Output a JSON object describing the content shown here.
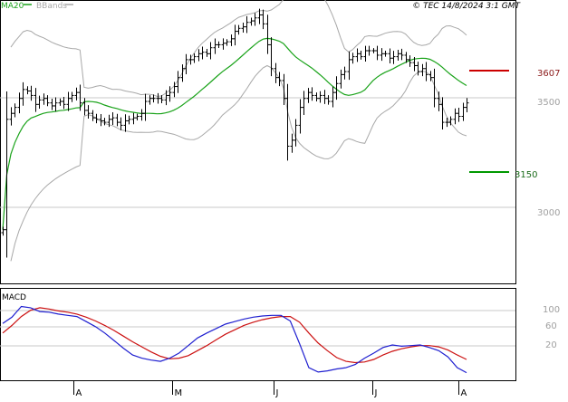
{
  "header": {
    "legend_ma": "MA20",
    "legend_bb": "BBands",
    "copyright": "© TEC 14/8/2024 3:1 GMT"
  },
  "colors": {
    "ma": "#1aa31a",
    "bb": "#a8a8a8",
    "price": "#000000",
    "macd": "#1f1fd0",
    "signal": "#cc1111",
    "target_high": "#cc0000",
    "target_low": "#009900",
    "grid": "#c8c8c8"
  },
  "chart_data": [
    {
      "type": "ohlc",
      "title": "",
      "series_labels": [
        "MA20",
        "BBands"
      ],
      "x_tick_labels": [
        "A",
        "M",
        "J",
        "J",
        "A"
      ],
      "y_tick_labels": [
        "3000",
        "3500"
      ],
      "ylim": [
        2850,
        3800
      ],
      "grid": true,
      "legend_position": "top-left",
      "levels": [
        {
          "name": "resistance",
          "label": "3607",
          "value": 3607,
          "color": "#cc0000"
        },
        {
          "name": "support",
          "label": "3150",
          "value": 3150,
          "color": "#009900"
        }
      ],
      "close": [
        3030,
        3400,
        3420,
        3440,
        3470,
        3500,
        3495,
        3480,
        3450,
        3465,
        3470,
        3455,
        3445,
        3455,
        3460,
        3450,
        3470,
        3480,
        3490,
        3455,
        3430,
        3420,
        3405,
        3400,
        3395,
        3390,
        3400,
        3405,
        3390,
        3380,
        3395,
        3400,
        3405,
        3410,
        3420,
        3460,
        3470,
        3470,
        3470,
        3465,
        3480,
        3490,
        3510,
        3540,
        3570,
        3600,
        3600,
        3610,
        3620,
        3625,
        3620,
        3640,
        3650,
        3650,
        3655,
        3660,
        3670,
        3695,
        3705,
        3710,
        3725,
        3730,
        3740,
        3750,
        3720,
        3650,
        3570,
        3540,
        3530,
        3470,
        3310,
        3330,
        3380,
        3440,
        3470,
        3490,
        3480,
        3470,
        3480,
        3470,
        3460,
        3490,
        3520,
        3550,
        3560,
        3600,
        3610,
        3620,
        3610,
        3630,
        3630,
        3630,
        3615,
        3620,
        3620,
        3605,
        3610,
        3620,
        3615,
        3600,
        3590,
        3580,
        3560,
        3570,
        3550,
        3540,
        3470,
        3450,
        3390,
        3390,
        3400,
        3420,
        3410,
        3440,
        3455
      ]
    },
    {
      "type": "line",
      "title": "",
      "series_labels": [
        "MACD"
      ],
      "y_tick_labels": [
        "100",
        "60",
        "20"
      ],
      "ylim": [
        -5,
        140
      ],
      "grid": true,
      "legend_position": "top-left",
      "macd": [
        85,
        95,
        112,
        110,
        104,
        103,
        100,
        98,
        96,
        88,
        80,
        70,
        58,
        46,
        35,
        30,
        27,
        25,
        30,
        38,
        50,
        62,
        70,
        77,
        84,
        88,
        92,
        95,
        97,
        98,
        98,
        89,
        53,
        15,
        8,
        10,
        13,
        15,
        20,
        30,
        38,
        47,
        51,
        49,
        50,
        51,
        47,
        42,
        32,
        15,
        7
      ],
      "signal": [
        70,
        82,
        96,
        106,
        110,
        108,
        105,
        103,
        100,
        95,
        89,
        82,
        74,
        65,
        56,
        48,
        40,
        33,
        29,
        30,
        34,
        42,
        50,
        59,
        68,
        75,
        82,
        87,
        91,
        94,
        96,
        96,
        87,
        70,
        54,
        42,
        31,
        25,
        23,
        24,
        28,
        35,
        41,
        45,
        48,
        50,
        50,
        48,
        43,
        35,
        28
      ]
    }
  ]
}
